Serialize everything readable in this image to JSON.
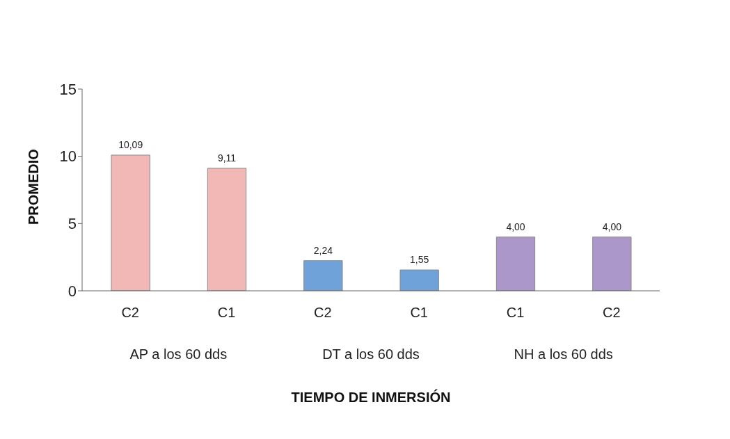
{
  "chart_data": {
    "type": "bar",
    "categories": [
      "C2",
      "C1",
      "C2",
      "C1",
      "C1",
      "C2"
    ],
    "values": [
      10.09,
      9.11,
      2.24,
      1.55,
      4.0,
      4.0
    ],
    "colors": [
      "#f2b8b6",
      "#f2b8b6",
      "#6fa2d9",
      "#6fa2d9",
      "#ab97c9",
      "#ab97c9"
    ],
    "value_labels": [
      "10,09",
      "9,11",
      "2,24",
      "1,55",
      "4,00",
      "4,00"
    ],
    "annotations": [
      "AP a los 60 dds",
      "DT a los 60 dds",
      "NH a los 60 dds"
    ],
    "xlabel": "TIEMPO DE INMERSIÓN",
    "ylabel": "PROMEDIO",
    "ylim": [
      0,
      15
    ],
    "yticks": [
      0,
      5,
      10,
      15
    ]
  }
}
